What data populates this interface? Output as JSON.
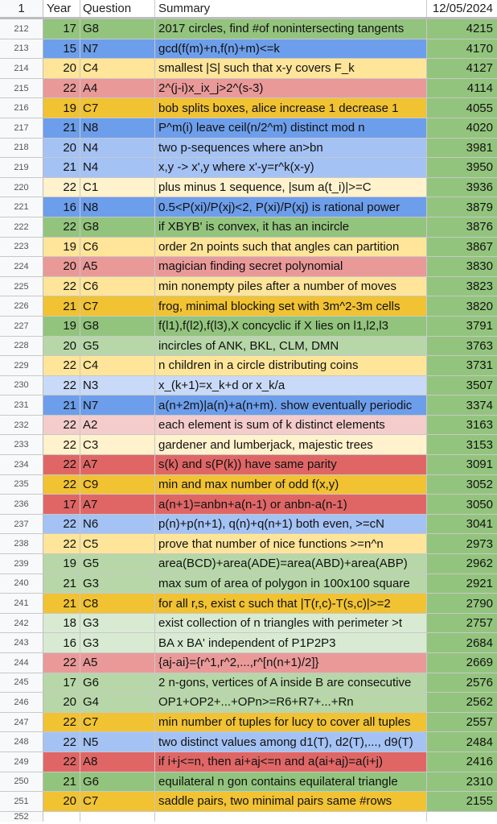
{
  "header": {
    "row_num": "1",
    "year": "Year",
    "question": "Question",
    "summary": "Summary",
    "date": "12/05/2024"
  },
  "colors": {
    "G": "#b7d7a8",
    "G_dark": "#93c47d",
    "N": "#6d9eeb",
    "N_light": "#a4c2f4",
    "C": "#ffe599",
    "C_dark": "#f1c232",
    "A": "#ea9999",
    "A_dark": "#e06666",
    "date_col": "#93c47d"
  },
  "rows": [
    {
      "n": "212",
      "year": "17",
      "q": "G8",
      "summary": "2017 circles, find #of nonintersecting tangents",
      "score": "4215",
      "color": "#93c47d"
    },
    {
      "n": "213",
      "year": "15",
      "q": "N7",
      "summary": "gcd(f(m)+n,f(n)+m)<=k",
      "score": "4170",
      "color": "#6d9eeb"
    },
    {
      "n": "214",
      "year": "20",
      "q": "C4",
      "summary": "smallest |S| such that x-y covers F_k",
      "score": "4127",
      "color": "#ffe599"
    },
    {
      "n": "215",
      "year": "22",
      "q": "A4",
      "summary": "2^(j-i)x_ix_j>2^(s-3)",
      "score": "4114",
      "color": "#ea9999"
    },
    {
      "n": "216",
      "year": "19",
      "q": "C7",
      "summary": "bob splits boxes, alice increase 1 decrease 1",
      "score": "4055",
      "color": "#f1c232"
    },
    {
      "n": "217",
      "year": "21",
      "q": "N8",
      "summary": "P^m(i) leave ceil(n/2^m) distinct mod n",
      "score": "4020",
      "color": "#6d9eeb"
    },
    {
      "n": "218",
      "year": "20",
      "q": "N4",
      "summary": "two p-sequences where an>bn",
      "score": "3981",
      "color": "#a4c2f4"
    },
    {
      "n": "219",
      "year": "21",
      "q": "N4",
      "summary": "x,y -> x',y where x'-y=r^k(x-y)",
      "score": "3950",
      "color": "#a4c2f4"
    },
    {
      "n": "220",
      "year": "22",
      "q": "C1",
      "summary": "plus minus 1 sequence, |sum a(t_i)|>=C",
      "score": "3936",
      "color": "#fff2cc"
    },
    {
      "n": "221",
      "year": "16",
      "q": "N8",
      "summary": "0.5<P(xi)/P(xj)<2, P(xi)/P(xj) is rational power",
      "score": "3879",
      "color": "#6d9eeb"
    },
    {
      "n": "222",
      "year": "22",
      "q": "G8",
      "summary": "if XBYB' is convex, it has an incircle",
      "score": "3876",
      "color": "#93c47d"
    },
    {
      "n": "223",
      "year": "19",
      "q": "C6",
      "summary": "order 2n points such that angles can partition",
      "score": "3867",
      "color": "#ffe599"
    },
    {
      "n": "224",
      "year": "20",
      "q": "A5",
      "summary": "magician finding secret polynomial",
      "score": "3830",
      "color": "#ea9999"
    },
    {
      "n": "225",
      "year": "22",
      "q": "C6",
      "summary": "min nonempty piles after a number of moves",
      "score": "3823",
      "color": "#ffe599"
    },
    {
      "n": "226",
      "year": "21",
      "q": "C7",
      "summary": "frog, minimal blocking set with 3m^2-3m cells",
      "score": "3820",
      "color": "#f1c232"
    },
    {
      "n": "227",
      "year": "19",
      "q": "G8",
      "summary": "f(l1),f(l2),f(l3),X concyclic if X lies on l1,l2,l3",
      "score": "3791",
      "color": "#93c47d"
    },
    {
      "n": "228",
      "year": "20",
      "q": "G5",
      "summary": "incircles of ANK, BKL, CLM, DMN",
      "score": "3763",
      "color": "#b7d7a8"
    },
    {
      "n": "229",
      "year": "22",
      "q": "C4",
      "summary": "n children in a circle distributing coins",
      "score": "3731",
      "color": "#ffe599"
    },
    {
      "n": "230",
      "year": "22",
      "q": "N3",
      "summary": "x_(k+1)=x_k+d or x_k/a",
      "score": "3507",
      "color": "#c9daf8"
    },
    {
      "n": "231",
      "year": "21",
      "q": "N7",
      "summary": "a(n+2m)|a(n)+a(n+m). show eventually periodic",
      "score": "3374",
      "color": "#6d9eeb"
    },
    {
      "n": "232",
      "year": "22",
      "q": "A2",
      "summary": "each element is sum of k distinct elements",
      "score": "3163",
      "color": "#f4cccc"
    },
    {
      "n": "233",
      "year": "22",
      "q": "C3",
      "summary": "gardener and lumberjack, majestic trees",
      "score": "3153",
      "color": "#fff2cc"
    },
    {
      "n": "234",
      "year": "22",
      "q": "A7",
      "summary": "s(k) and s(P(k)) have same parity",
      "score": "3091",
      "color": "#e06666"
    },
    {
      "n": "235",
      "year": "22",
      "q": "C9",
      "summary": "min and max number of odd f(x,y)",
      "score": "3052",
      "color": "#f1c232"
    },
    {
      "n": "236",
      "year": "17",
      "q": "A7",
      "summary": "a(n+1)=anbn+a(n-1) or anbn-a(n-1)",
      "score": "3050",
      "color": "#e06666"
    },
    {
      "n": "237",
      "year": "22",
      "q": "N6",
      "summary": "p(n)+p(n+1), q(n)+q(n+1) both even, >=cN",
      "score": "3041",
      "color": "#a4c2f4"
    },
    {
      "n": "238",
      "year": "22",
      "q": "C5",
      "summary": "prove that number of nice functions >=n^n",
      "score": "2973",
      "color": "#ffe599"
    },
    {
      "n": "239",
      "year": "19",
      "q": "G5",
      "summary": "area(BCD)+area(ADE)=area(ABD)+area(ABP)",
      "score": "2962",
      "color": "#b7d7a8"
    },
    {
      "n": "240",
      "year": "21",
      "q": "G3",
      "summary": "max sum of area of polygon in 100x100 square",
      "score": "2921",
      "color": "#b7d7a8"
    },
    {
      "n": "241",
      "year": "21",
      "q": "C8",
      "summary": "for all r,s, exist c such that |T(r,c)-T(s,c)|>=2",
      "score": "2790",
      "color": "#f1c232"
    },
    {
      "n": "242",
      "year": "18",
      "q": "G3",
      "summary": "exist collection of n triangles with perimeter >t",
      "score": "2757",
      "color": "#d9ead3"
    },
    {
      "n": "243",
      "year": "16",
      "q": "G3",
      "summary": "BA x BA' independent of P1P2P3",
      "score": "2684",
      "color": "#d9ead3"
    },
    {
      "n": "244",
      "year": "22",
      "q": "A5",
      "summary": "{aj-ai}={r^1,r^2,...,r^[n(n+1)/2]}",
      "score": "2669",
      "color": "#ea9999"
    },
    {
      "n": "245",
      "year": "17",
      "q": "G6",
      "summary": "2 n-gons, vertices of A inside B are consecutive",
      "score": "2576",
      "color": "#b7d7a8"
    },
    {
      "n": "246",
      "year": "20",
      "q": "G4",
      "summary": "OP1+OP2+...+OPn>=R6+R7+...+Rn",
      "score": "2562",
      "color": "#b7d7a8"
    },
    {
      "n": "247",
      "year": "22",
      "q": "C7",
      "summary": "min number of tuples for lucy to cover all tuples",
      "score": "2557",
      "color": "#f1c232"
    },
    {
      "n": "248",
      "year": "22",
      "q": "N5",
      "summary": "two distinct values among d1(T), d2(T),..., d9(T)",
      "score": "2484",
      "color": "#a4c2f4"
    },
    {
      "n": "249",
      "year": "22",
      "q": "A8",
      "summary": "if i+j<=n, then ai+aj<=n and a(ai+aj)=a(i+j)",
      "score": "2416",
      "color": "#e06666"
    },
    {
      "n": "250",
      "year": "21",
      "q": "G6",
      "summary": "equilateral n gon contains equilateral triangle",
      "score": "2310",
      "color": "#93c47d"
    },
    {
      "n": "251",
      "year": "20",
      "q": "C7",
      "summary": "saddle pairs, two minimal pairs same #rows",
      "score": "2155",
      "color": "#f1c232"
    },
    {
      "n": "252",
      "year": "",
      "q": "",
      "summary": "",
      "score": "",
      "color": "#ffffff"
    }
  ]
}
